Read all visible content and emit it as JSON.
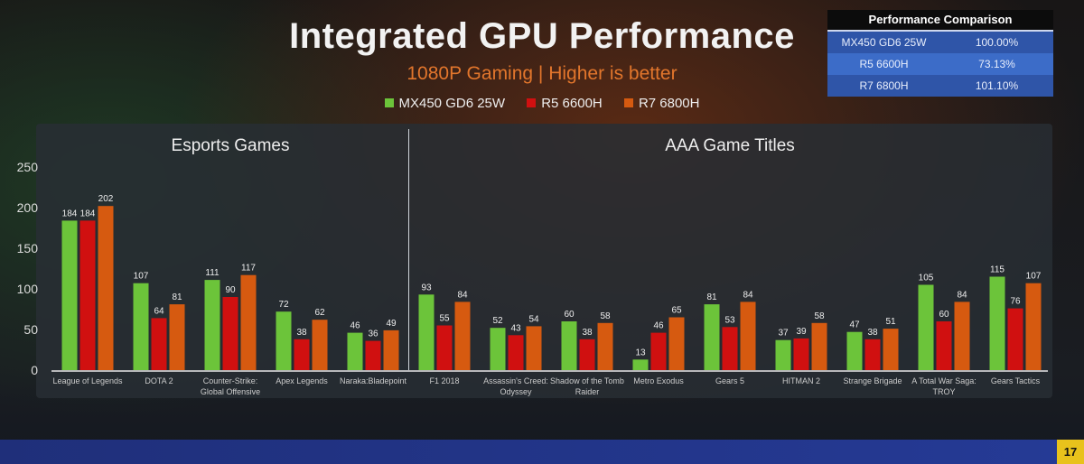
{
  "page_number": "17",
  "comparison_table": {
    "title": "Performance Comparison",
    "rows": [
      {
        "label": "MX450 GD6 25W",
        "value": "100.00%",
        "color": "#2f55a8"
      },
      {
        "label": "R5 6600H",
        "value": "73.13%",
        "color": "#3c6cc8"
      },
      {
        "label": "R7 6800H",
        "value": "101.10%",
        "color": "#2f55a8"
      }
    ]
  },
  "chart_data": {
    "type": "bar",
    "title": "Integrated GPU Performance",
    "subtitle": "1080P Gaming | Higher is better",
    "xlabel": "",
    "ylabel": "",
    "ylim": [
      0,
      250
    ],
    "yticks": [
      0,
      50,
      100,
      150,
      200,
      250
    ],
    "grid": false,
    "legend": "top-center",
    "groups": [
      {
        "label": "Esports Games",
        "count": 5
      },
      {
        "label": "AAA Game Titles",
        "count": 9
      }
    ],
    "categories": [
      "League of Legends",
      "DOTA 2",
      "Counter-Strike: Global Offensive",
      "Apex Legends",
      "Naraka:Bladepoint",
      "F1 2018",
      "Assassin's Creed: Odyssey",
      "Shadow of the Tomb Raider",
      "Metro Exodus",
      "Gears 5",
      "HITMAN 2",
      "Strange Brigade",
      "A Total War Saga: TROY",
      "Gears Tactics"
    ],
    "category_lines": [
      [
        "League of Legends"
      ],
      [
        "DOTA 2"
      ],
      [
        "Counter-Strike:",
        "Global Offensive"
      ],
      [
        "Apex Legends"
      ],
      [
        "Naraka:Bladepoint"
      ],
      [
        "F1 2018"
      ],
      [
        "Assassin's Creed:",
        "Odyssey"
      ],
      [
        "Shadow of the Tomb",
        "Raider"
      ],
      [
        "Metro Exodus"
      ],
      [
        "Gears 5"
      ],
      [
        "HITMAN 2"
      ],
      [
        "Strange Brigade"
      ],
      [
        "A Total War Saga:",
        "TROY"
      ],
      [
        "Gears Tactics"
      ]
    ],
    "series": [
      {
        "name": "MX450 GD6 25W",
        "color": "#6cc43a",
        "values": [
          184,
          107,
          111,
          72,
          46,
          93,
          52,
          60,
          13,
          81,
          37,
          47,
          105,
          115
        ]
      },
      {
        "name": "R5 6600H",
        "color": "#d01010",
        "values": [
          184,
          64,
          90,
          38,
          36,
          55,
          43,
          38,
          46,
          53,
          39,
          38,
          60,
          76
        ]
      },
      {
        "name": "R7 6800H",
        "color": "#d65a10",
        "values": [
          202,
          81,
          117,
          62,
          49,
          84,
          54,
          58,
          65,
          84,
          58,
          51,
          84,
          107
        ]
      }
    ]
  }
}
